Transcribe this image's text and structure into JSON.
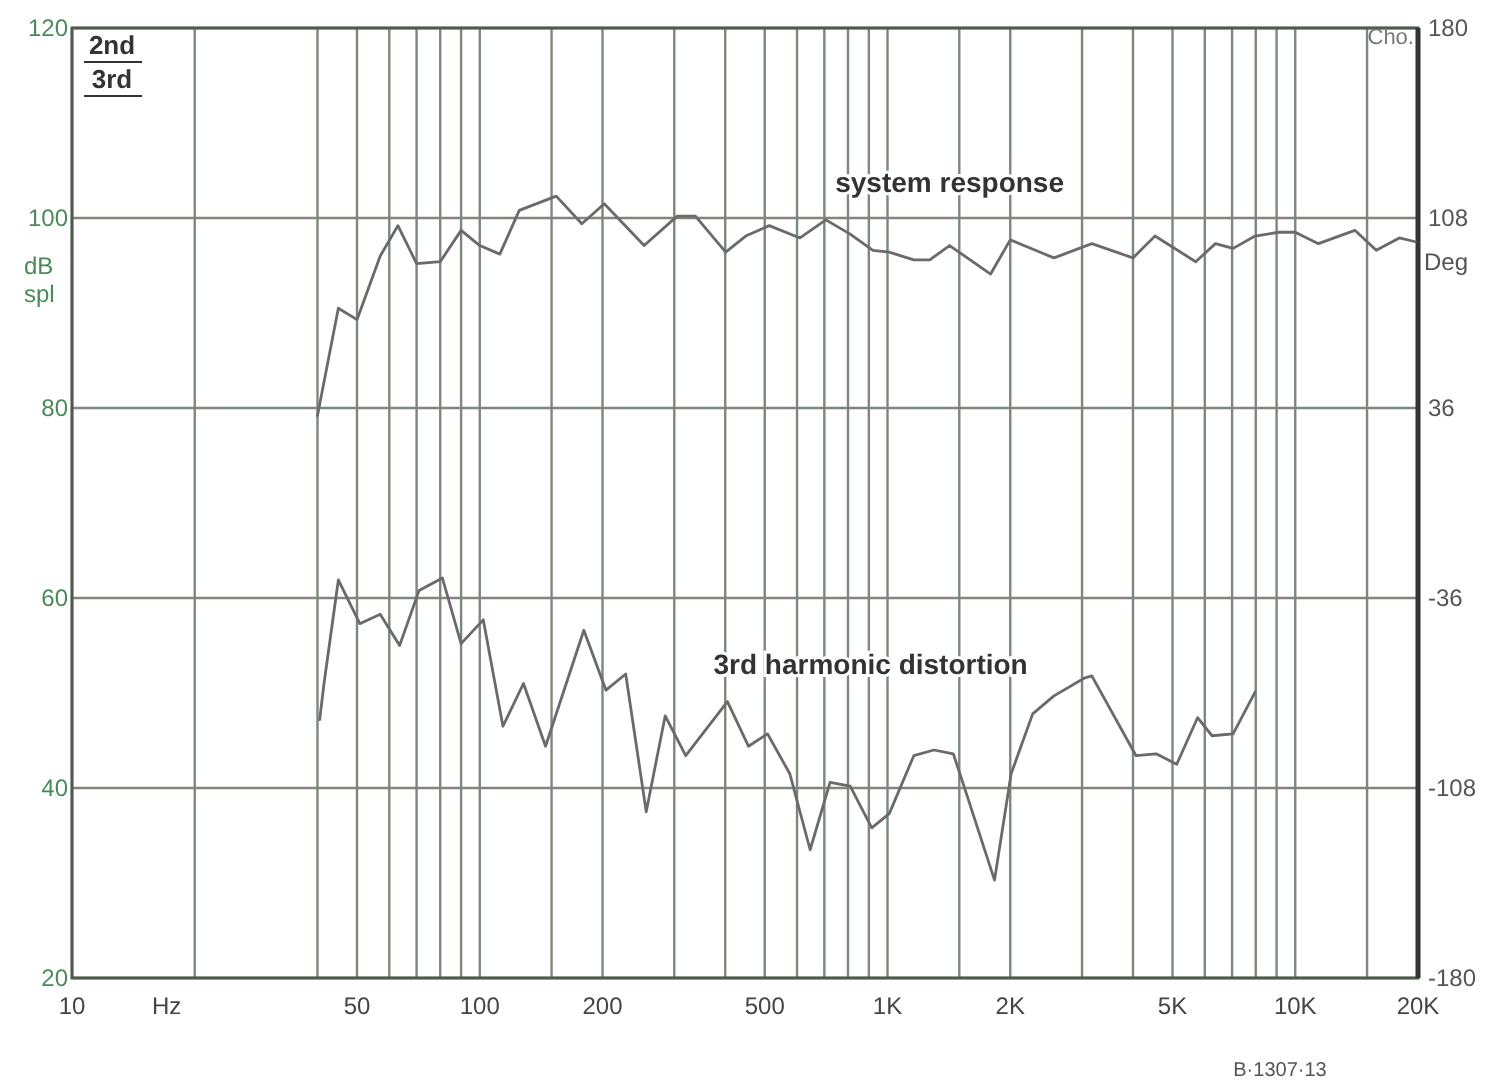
{
  "chart_data": {
    "type": "line",
    "xlabel": "Hz",
    "ylabel": "dB spl",
    "y2label": "Deg",
    "log": "x",
    "grid": true,
    "line_style": "solid",
    "marker": "none",
    "xlim": [
      10,
      20000
    ],
    "ylim": [
      20,
      120
    ],
    "y2lim": [
      -180,
      180
    ],
    "xticks": [
      {
        "value": 10,
        "label": "10"
      },
      {
        "value": 20,
        "label": null
      },
      {
        "value": 40,
        "label": null
      },
      {
        "value": 50,
        "label": "50"
      },
      {
        "value": 60,
        "label": null
      },
      {
        "value": 70,
        "label": null
      },
      {
        "value": 80,
        "label": null
      },
      {
        "value": 90,
        "label": null
      },
      {
        "value": 100,
        "label": "100"
      },
      {
        "value": 150,
        "label": null
      },
      {
        "value": 200,
        "label": "200"
      },
      {
        "value": 300,
        "label": null
      },
      {
        "value": 400,
        "label": null
      },
      {
        "value": 500,
        "label": "500"
      },
      {
        "value": 600,
        "label": null
      },
      {
        "value": 700,
        "label": null
      },
      {
        "value": 800,
        "label": null
      },
      {
        "value": 900,
        "label": null
      },
      {
        "value": 1000,
        "label": "1K"
      },
      {
        "value": 1500,
        "label": null
      },
      {
        "value": 2000,
        "label": "2K"
      },
      {
        "value": 3000,
        "label": null
      },
      {
        "value": 4000,
        "label": null
      },
      {
        "value": 5000,
        "label": "5K"
      },
      {
        "value": 6000,
        "label": null
      },
      {
        "value": 7000,
        "label": null
      },
      {
        "value": 8000,
        "label": null
      },
      {
        "value": 9000,
        "label": null
      },
      {
        "value": 10000,
        "label": "10K"
      },
      {
        "value": 15000,
        "label": null
      },
      {
        "value": 20000,
        "label": "20K"
      }
    ],
    "yticks": [
      20,
      40,
      60,
      80,
      100,
      120
    ],
    "y2ticks": [
      -180,
      -108,
      -36,
      36,
      108,
      180
    ],
    "series": [
      {
        "name": "system response",
        "color": "#6a6a6a",
        "x": [
          40,
          45,
          50,
          57,
          63,
          70,
          80,
          90,
          100,
          112,
          125,
          154,
          178,
          202,
          253,
          305,
          338,
          401,
          449,
          513,
          610,
          706,
          810,
          921,
          1010,
          1160,
          1270,
          1420,
          1790,
          2000,
          2560,
          3170,
          4000,
          4530,
          5700,
          6370,
          7040,
          7970,
          9130,
          10000,
          11400,
          14000,
          15800,
          18000,
          19700
        ],
        "values": [
          79.2,
          90.5,
          89.3,
          96,
          99.2,
          95.2,
          95.4,
          98.7,
          97.1,
          96.2,
          100.8,
          102.3,
          99.4,
          101.5,
          97.1,
          100.2,
          100.2,
          96.4,
          98.1,
          99.2,
          97.9,
          99.8,
          98.3,
          96.6,
          96.4,
          95.6,
          95.6,
          97.1,
          94.1,
          97.7,
          95.8,
          97.3,
          95.8,
          98.1,
          95.4,
          97.3,
          96.8,
          98.1,
          98.5,
          98.5,
          97.3,
          98.7,
          96.6,
          97.9,
          97.5
        ]
      },
      {
        "name": "3rd harmonic distortion",
        "color": "#6a6a6a",
        "x": [
          40.5,
          41.5,
          45,
          50.8,
          57,
          63.6,
          71,
          81,
          90,
          102,
          114,
          128,
          145,
          180,
          204,
          228,
          256,
          285,
          320,
          405,
          456,
          508,
          576,
          646,
          723,
          810,
          915,
          1010,
          1160,
          1300,
          1450,
          1540,
          1830,
          2010,
          2270,
          2560,
          3050,
          3170,
          4070,
          4560,
          5120,
          5760,
          6250,
          7040,
          7970
        ],
        "values": [
          47.2,
          51,
          61.9,
          57.3,
          58.3,
          55,
          60.8,
          62.1,
          55.2,
          57.7,
          46.5,
          51,
          44.4,
          56.6,
          50.3,
          52,
          37.5,
          47.6,
          43.4,
          49.1,
          44.4,
          45.7,
          41.5,
          33.5,
          40.6,
          40.2,
          35.8,
          37.3,
          43.4,
          44,
          43.6,
          40.2,
          30.3,
          41.5,
          47.8,
          49.7,
          51.6,
          51.8,
          43.4,
          43.6,
          42.5,
          47.4,
          45.5,
          45.7,
          50.1
        ]
      }
    ],
    "annotations": [
      "2nd",
      "3rd",
      "Cho.",
      "B·1307·13"
    ]
  }
}
